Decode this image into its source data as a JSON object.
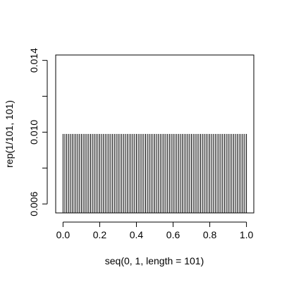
{
  "chart_data": {
    "type": "bar",
    "style": "vertical-lines",
    "xlabel": "seq(0, 1, length = 101)",
    "ylabel": "rep(1/101, 101)",
    "x": {
      "start": 0,
      "end": 1,
      "count": 101
    },
    "y_value": 0.00990099,
    "xlim": [
      -0.04,
      1.04
    ],
    "ylim": [
      0.0055,
      0.0143
    ],
    "x_ticks": [
      "0.0",
      "0.2",
      "0.4",
      "0.6",
      "0.8",
      "1.0"
    ],
    "y_ticks": [
      "0.006",
      "0.010",
      "0.014"
    ],
    "y_tick_values": [
      0.006,
      0.008,
      0.01,
      0.012,
      0.014
    ],
    "y_label_values": [
      0.006,
      0.01,
      0.014
    ],
    "grid": false,
    "colors": {
      "line": "#000000",
      "background": "#ffffff"
    }
  }
}
